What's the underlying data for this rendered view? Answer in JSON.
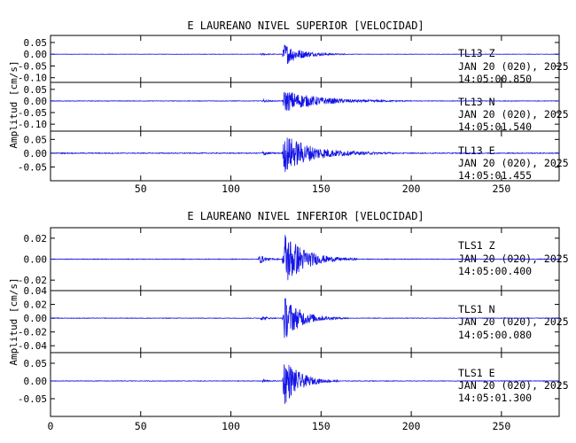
{
  "chart_data": [
    {
      "type": "line",
      "title": "E LAUREANO NIVEL SUPERIOR [VELOCIDAD]",
      "ylabel": "Amplitud [cm/s]",
      "xlabel": "",
      "xlim": [
        0,
        282
      ],
      "x_ticks": [
        50,
        100,
        150,
        200,
        250
      ],
      "x_tick_labels": [
        "50",
        "100",
        "150",
        "200",
        "250"
      ],
      "trace_color": "#1414e6",
      "panels": [
        {
          "component": "TL13   Z",
          "station": "TL13",
          "channel": "Z",
          "date": "JAN 20 (020), 2025",
          "time": "14:05:00.850",
          "ylim": [
            -0.12,
            0.08
          ],
          "y_ticks": [
            0.05,
            0.0,
            -0.05,
            -0.1
          ],
          "y_tick_labels": [
            "0.05",
            "0.00",
            "-0.05",
            "-0.10"
          ],
          "noise": 0.0008,
          "events": [
            {
              "t0": 116,
              "t1": 128,
              "amp": 0.004
            },
            {
              "t0": 128.5,
              "t1": 165,
              "amp": 0.048
            }
          ]
        },
        {
          "component": "TL13   N",
          "station": "TL13",
          "channel": "N",
          "date": "JAN 20 (020), 2025",
          "time": "14:05:01.540",
          "ylim": [
            -0.13,
            0.08
          ],
          "y_ticks": [
            0.05,
            0.0,
            -0.05,
            -0.1
          ],
          "y_tick_labels": [
            "0.05",
            "0.00",
            "-0.05",
            "-0.10"
          ],
          "noise": 0.0012,
          "events": [
            {
              "t0": 117,
              "t1": 128,
              "amp": 0.006
            },
            {
              "t0": 128.5,
              "t1": 200,
              "amp": 0.048
            }
          ]
        },
        {
          "component": "TL13   E",
          "station": "TL13",
          "channel": "E",
          "date": "JAN 20 (020), 2025",
          "time": "14:05:01.455",
          "ylim": [
            -0.1,
            0.08
          ],
          "y_ticks": [
            0.05,
            0.0,
            -0.05
          ],
          "y_tick_labels": [
            "0.05",
            "0.00",
            "-0.05"
          ],
          "noise": 0.0015,
          "events": [
            {
              "t0": 117,
              "t1": 128,
              "amp": 0.008
            },
            {
              "t0": 128.5,
              "t1": 190,
              "amp": 0.07
            }
          ]
        }
      ]
    },
    {
      "type": "line",
      "title": "E LAUREANO NIVEL INFERIOR [VELOCIDAD]",
      "ylabel": "Amplitud [cm/s]",
      "xlabel": "",
      "xlim": [
        0,
        282
      ],
      "x_ticks": [
        0,
        50,
        100,
        150,
        200,
        250
      ],
      "x_tick_labels": [
        "0",
        "50",
        "100",
        "150",
        "200",
        "250"
      ],
      "trace_color": "#1414e6",
      "panels": [
        {
          "component": "TLS1   Z",
          "station": "TLS1",
          "channel": "Z",
          "date": "JAN 20 (020), 2025",
          "time": "14:05:00.400",
          "ylim": [
            -0.03,
            0.03
          ],
          "y_ticks": [
            0.02,
            0.0,
            -0.02
          ],
          "y_tick_labels": [
            "0.02",
            "0.00",
            "-0.02"
          ],
          "noise": 0.0003,
          "events": [
            {
              "t0": 115,
              "t1": 128,
              "amp": 0.004
            },
            {
              "t0": 128.5,
              "t1": 170,
              "amp": 0.028
            }
          ]
        },
        {
          "component": "TLS1   N",
          "station": "TLS1",
          "channel": "N",
          "date": "JAN 20 (020), 2025",
          "time": "14:05:00.080",
          "ylim": [
            -0.05,
            0.04
          ],
          "y_ticks": [
            0.04,
            0.02,
            0.0,
            -0.02,
            -0.04
          ],
          "y_tick_labels": [
            "0.04",
            "0.02",
            "0.00",
            "-0.02",
            "-0.04"
          ],
          "noise": 0.0004,
          "events": [
            {
              "t0": 116,
              "t1": 128,
              "amp": 0.003
            },
            {
              "t0": 128.5,
              "t1": 165,
              "amp": 0.032
            }
          ]
        },
        {
          "component": "TLS1   E",
          "station": "TLS1",
          "channel": "E",
          "date": "JAN 20 (020), 2025",
          "time": "14:05:01.300",
          "ylim": [
            -0.1,
            0.08
          ],
          "y_ticks": [
            0.05,
            0.0,
            -0.05
          ],
          "y_tick_labels": [
            "0.05",
            "0.00",
            "-0.05"
          ],
          "noise": 0.0008,
          "events": [
            {
              "t0": 117,
              "t1": 128,
              "amp": 0.004
            },
            {
              "t0": 128.5,
              "t1": 160,
              "amp": 0.07
            }
          ]
        }
      ]
    }
  ]
}
